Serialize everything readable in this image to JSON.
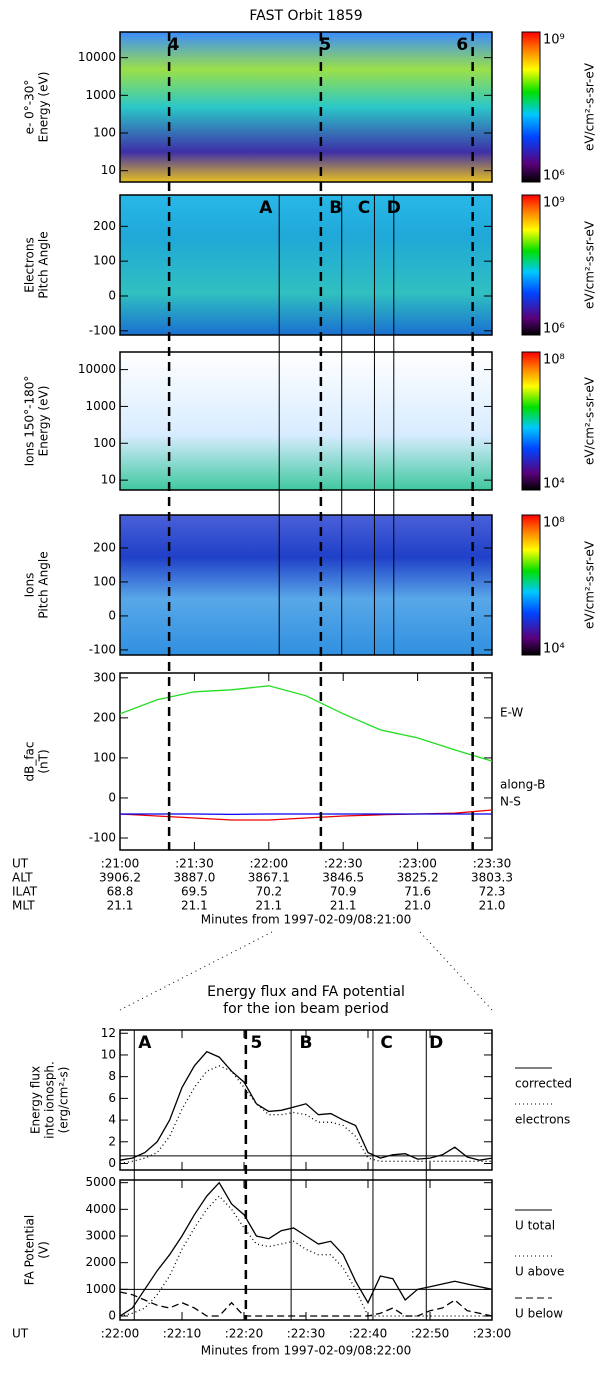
{
  "chart_data": [
    {
      "type": "heatmap",
      "title": "FAST Orbit 1859",
      "ylabel": [
        "e- 0°-30°",
        "Energy (eV)"
      ],
      "ylog": true,
      "ylim": [
        5,
        48000
      ],
      "yticks": [
        10,
        100,
        1000,
        10000
      ],
      "xlim": [
        0,
        2.5
      ],
      "colorbar": {
        "label": "eV/cm²-s-sr-eV",
        "ticks": [
          {
            "value": 1000000,
            "label": "10⁶"
          },
          {
            "value": 1000000000,
            "label": "10⁹"
          }
        ]
      },
      "annotations": [
        {
          "text": "4",
          "x": 0.36
        },
        {
          "text": "5",
          "x": 1.38
        },
        {
          "text": "6",
          "x": 2.3
        }
      ]
    },
    {
      "type": "heatmap",
      "ylabel": [
        "Electrons",
        "Pitch Angle"
      ],
      "ylim": [
        -112,
        290
      ],
      "yticks": [
        -100,
        0,
        100,
        200
      ],
      "xlim": [
        0,
        2.5
      ],
      "colorbar": {
        "label": "eV/cm²-s-sr-eV",
        "ticks": [
          {
            "value": 1000000,
            "label": "10⁶"
          },
          {
            "value": 1000000000,
            "label": "10⁹"
          }
        ]
      },
      "annotations": [
        {
          "text": "A",
          "x": 0.98
        },
        {
          "text": "B",
          "x": 1.45
        },
        {
          "text": "C",
          "x": 1.64
        },
        {
          "text": "D",
          "x": 1.84
        }
      ]
    },
    {
      "type": "heatmap",
      "ylabel": [
        "Ions 150°-180°",
        "Energy (eV)"
      ],
      "ylog": true,
      "ylim": [
        5.4,
        30000
      ],
      "yticks": [
        10,
        100,
        1000,
        10000
      ],
      "xlim": [
        0,
        2.5
      ],
      "colorbar": {
        "label": "eV/cm²-s-sr-eV",
        "ticks": [
          {
            "value": 10000,
            "label": "10⁴"
          },
          {
            "value": 100000000,
            "label": "10⁸"
          }
        ]
      }
    },
    {
      "type": "heatmap",
      "ylabel": [
        "Ions",
        "Pitch Angle"
      ],
      "ylim": [
        -115,
        297
      ],
      "yticks": [
        -100,
        0,
        100,
        200
      ],
      "xlim": [
        0,
        2.5
      ],
      "colorbar": {
        "label": "eV/cm²-s-sr-eV",
        "ticks": [
          {
            "value": 10000,
            "label": "10⁴"
          },
          {
            "value": 100000000,
            "label": "10⁸"
          }
        ]
      }
    },
    {
      "type": "line",
      "ylabel": [
        "dB_fac",
        "(nT)"
      ],
      "ylim": [
        -130,
        312
      ],
      "yticks": [
        -100,
        0,
        100,
        200,
        300
      ],
      "xlim": [
        0,
        2.5
      ],
      "xticks": [
        {
          "value": 0,
          "label": ":21:00"
        },
        {
          "value": 0.5,
          "label": ":21:30"
        },
        {
          "value": 1,
          "label": ":22:00"
        },
        {
          "value": 1.5,
          "label": ":22:30"
        },
        {
          "value": 2,
          "label": ":23:00"
        },
        {
          "value": 2.5,
          "label": ":23:30"
        }
      ],
      "xtick_row_label": "UT",
      "xlabel": "Minutes from 1997-02-09/08:21:00",
      "x": [
        0,
        0.25,
        0.5,
        0.75,
        1,
        1.25,
        1.5,
        1.75,
        2,
        2.25,
        2.5
      ],
      "series": [
        {
          "name": "E-W",
          "color": "#22dd22",
          "dash": "solid",
          "values": [
            210,
            245,
            265,
            270,
            280,
            255,
            210,
            170,
            150,
            120,
            92
          ]
        },
        {
          "name": "along-B",
          "color": "#ee0000",
          "dash": "solid",
          "values": [
            -40,
            -45,
            -50,
            -55,
            -55,
            -50,
            -45,
            -42,
            -40,
            -38,
            -30
          ]
        },
        {
          "name": "N-S",
          "color": "#0000ee",
          "dash": "solid",
          "values": [
            -40,
            -40,
            -40,
            -41,
            -40,
            -40,
            -40,
            -40,
            -40,
            -40,
            -40
          ]
        }
      ]
    },
    {
      "type": "line",
      "title": [
        "Energy flux and FA potential",
        "for the ion beam period"
      ],
      "ylabel": [
        "Energy flux",
        "into ionosph.",
        "(erg/cm²-s)"
      ],
      "ylim": [
        -0.6,
        12.3
      ],
      "yticks": [
        0,
        2,
        4,
        6,
        8,
        10,
        12
      ],
      "xlim": [
        0,
        60
      ],
      "xticks": [
        0,
        10,
        20,
        30,
        40,
        50,
        60
      ],
      "hlines": [
        0.7
      ],
      "annotations": [
        {
          "text": "A",
          "x": 4
        },
        {
          "text": "5",
          "x": 22
        },
        {
          "text": "B",
          "x": 30
        },
        {
          "text": "C",
          "x": 43
        },
        {
          "text": "D",
          "x": 51
        }
      ],
      "x": [
        0,
        2,
        4,
        6,
        8,
        10,
        12,
        14,
        16,
        18,
        20,
        22,
        24,
        26,
        28,
        30,
        32,
        34,
        36,
        38,
        40,
        42,
        44,
        46,
        48,
        50,
        52,
        54,
        56,
        58,
        60
      ],
      "series": [
        {
          "name": "corrected",
          "color": "#000000",
          "dash": "solid",
          "values": [
            0.3,
            0.5,
            1,
            2,
            4,
            7,
            9,
            10.3,
            9.8,
            8.5,
            7.5,
            5.5,
            4.8,
            4.9,
            5.2,
            5.5,
            4.5,
            4.6,
            4,
            3.5,
            1,
            0.5,
            0.8,
            0.9,
            0.4,
            0.5,
            0.8,
            1.5,
            0.6,
            0.3,
            0.5
          ]
        },
        {
          "name": "electrons",
          "color": "#000000",
          "dash": "dotted",
          "values": [
            0,
            0.2,
            0.5,
            1,
            2.5,
            5,
            7,
            8.5,
            9,
            8.5,
            7,
            5.5,
            4.5,
            4.5,
            4.7,
            4.5,
            3.8,
            3.8,
            3.5,
            2.5,
            0.5,
            0.2,
            0.2,
            0.2,
            0.2,
            0.2,
            0.2,
            0.2,
            0.2,
            0.2,
            0.2
          ]
        }
      ]
    },
    {
      "type": "line",
      "ylabel": [
        "FA Potential",
        "(V)"
      ],
      "ylim": [
        -150,
        5100
      ],
      "yticks": [
        0,
        1000,
        2000,
        3000,
        4000,
        5000
      ],
      "xlim": [
        0,
        60
      ],
      "hlines": [
        1000
      ],
      "xticks": [
        {
          "value": 0,
          "label": ":22:00"
        },
        {
          "value": 10,
          "label": ":22:10"
        },
        {
          "value": 20,
          "label": ":22:20"
        },
        {
          "value": 30,
          "label": ":22:30"
        },
        {
          "value": 40,
          "label": ":22:40"
        },
        {
          "value": 50,
          "label": ":22:50"
        },
        {
          "value": 60,
          "label": ":23:00"
        }
      ],
      "xtick_row_label": "UT",
      "xlabel": "Minutes from 1997-02-09/08:22:00",
      "x": [
        0,
        2,
        4,
        6,
        8,
        10,
        12,
        14,
        16,
        18,
        20,
        22,
        24,
        26,
        28,
        30,
        32,
        34,
        36,
        38,
        40,
        42,
        44,
        46,
        48,
        50,
        52,
        54,
        56,
        58,
        60
      ],
      "series": [
        {
          "name": "U total",
          "color": "#000000",
          "dash": "solid",
          "values": [
            0,
            300,
            1000,
            1700,
            2300,
            3000,
            3800,
            4500,
            5000,
            4200,
            3800,
            3000,
            2900,
            3200,
            3300,
            3000,
            2700,
            2800,
            2300,
            1300,
            500,
            1500,
            1400,
            600,
            1000,
            1100,
            1200,
            1300,
            1200,
            1100,
            1000
          ]
        },
        {
          "name": "U above",
          "color": "#000000",
          "dash": "dotted",
          "values": [
            0,
            100,
            300,
            800,
            1500,
            2500,
            3300,
            4000,
            4500,
            4000,
            3300,
            2700,
            2600,
            2700,
            2800,
            2500,
            2300,
            2300,
            1800,
            1000,
            0,
            0,
            0,
            0,
            0,
            0,
            0,
            0,
            0,
            0,
            0
          ]
        },
        {
          "name": "U below",
          "color": "#000000",
          "dash": "dashed",
          "values": [
            900,
            800,
            600,
            400,
            300,
            500,
            300,
            0,
            0,
            500,
            0,
            0,
            0,
            0,
            0,
            0,
            0,
            0,
            0,
            0,
            0,
            100,
            300,
            0,
            0,
            200,
            300,
            600,
            200,
            100,
            0
          ]
        }
      ]
    }
  ],
  "markers": {
    "dashed": [
      0.33,
      1.35,
      2.37
    ],
    "solid": [
      1.07,
      1.49,
      1.71,
      1.84
    ]
  },
  "markers_zoom": {
    "dashed": [
      20.3
    ],
    "solid": [
      2.3,
      27.6,
      40.8,
      49.4
    ]
  },
  "orbit_table": {
    "rows": [
      {
        "label": "ALT",
        "values": [
          "3906.2",
          "3887.0",
          "3867.1",
          "3846.5",
          "3825.2",
          "3803.3"
        ]
      },
      {
        "label": "ILAT",
        "values": [
          "68.8",
          "69.5",
          "70.2",
          "70.9",
          "71.6",
          "72.3"
        ]
      },
      {
        "label": "MLT",
        "values": [
          "21.1",
          "21.1",
          "21.1",
          "21.1",
          "21.0",
          "21.0"
        ]
      }
    ]
  }
}
